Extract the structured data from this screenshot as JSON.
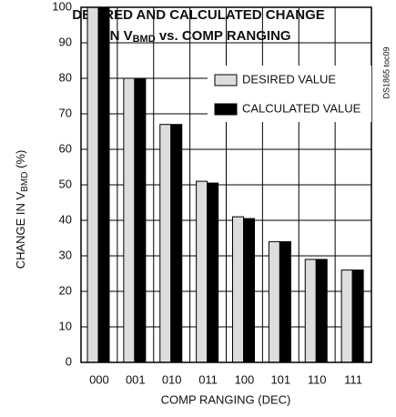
{
  "chart_data": {
    "type": "bar",
    "title": {
      "line1": "DESIRED AND CALCULATED CHANGE",
      "line2": {
        "before": "IN V",
        "sub": "BMD",
        "after": " vs. COMP RANGING"
      }
    },
    "y_label": {
      "before": "CHANGE IN V",
      "sub": "BMD",
      "after": " (%)"
    },
    "x_label": "COMP RANGING (DEC)",
    "annotation": "DS1865 toc09",
    "categories": [
      "000",
      "001",
      "010",
      "011",
      "100",
      "101",
      "110",
      "111"
    ],
    "series": [
      {
        "name": "DESIRED VALUE",
        "color": "#dddddd",
        "values": [
          100,
          80,
          67,
          51,
          41,
          34,
          29,
          26
        ]
      },
      {
        "name": "CALCULATED VALUE",
        "color": "#000000",
        "values": [
          100,
          80,
          67,
          50.5,
          40.5,
          34,
          29,
          26
        ]
      }
    ],
    "ylim": [
      0,
      100
    ],
    "yticks": [
      0,
      10,
      20,
      30,
      40,
      50,
      60,
      70,
      80,
      90,
      100
    ],
    "grid": true,
    "legend": "upper right"
  }
}
